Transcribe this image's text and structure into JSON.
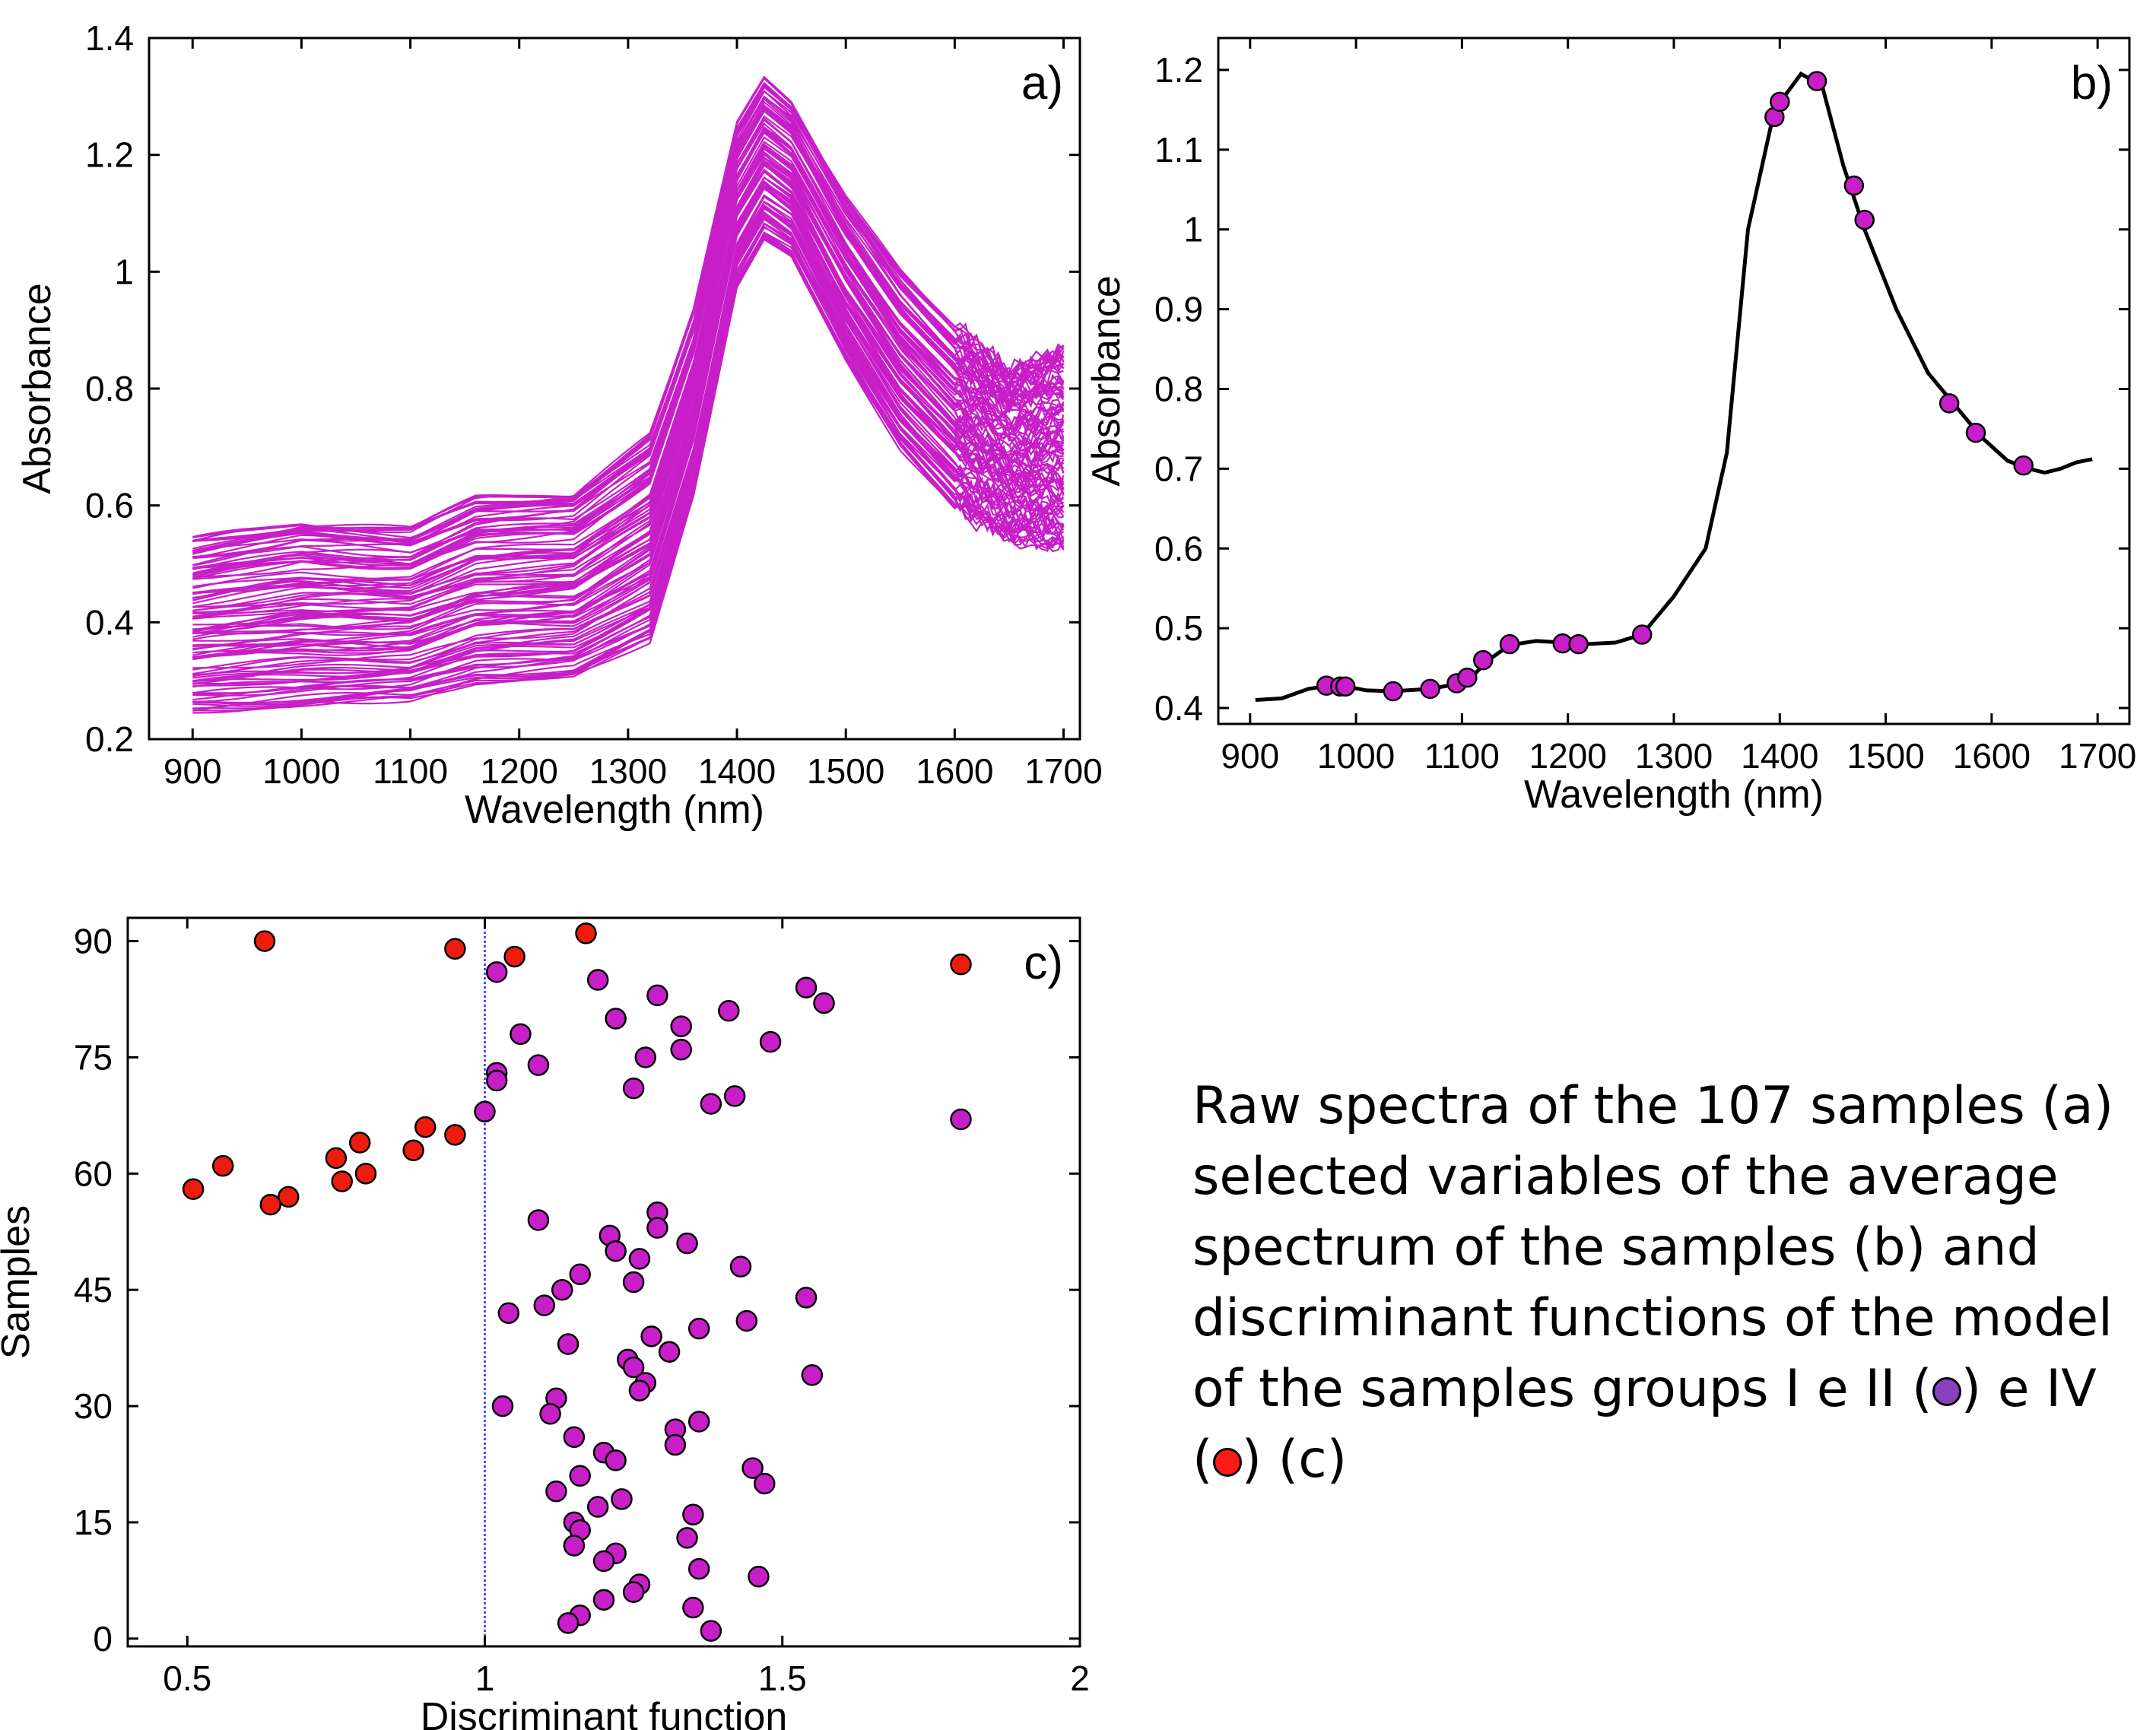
{
  "chart_data": [
    {
      "id": "a",
      "type": "line",
      "panel_label": "a)",
      "xlabel": "Wavelength (nm)",
      "ylabel": "Absorbance",
      "xlim": [
        860,
        1715
      ],
      "ylim": [
        0.2,
        1.4
      ],
      "xticks": [
        900,
        1000,
        1100,
        1200,
        1300,
        1400,
        1500,
        1600,
        1700
      ],
      "yticks": [
        0.2,
        0.4,
        0.6,
        0.8,
        1,
        1.2,
        1.4
      ],
      "ytick_labels": [
        "0.2",
        "0.4",
        "0.6",
        "0.8",
        "1",
        "1.2",
        "1.4"
      ],
      "series_color": "#c81ec8",
      "series_count": 107,
      "grid": false,
      "envelope": {
        "x": [
          900,
          1000,
          1100,
          1160,
          1250,
          1320,
          1360,
          1400,
          1425,
          1450,
          1500,
          1550,
          1600,
          1650,
          1700
        ],
        "lower": [
          0.25,
          0.26,
          0.27,
          0.3,
          0.31,
          0.37,
          0.62,
          0.98,
          1.06,
          1.03,
          0.85,
          0.7,
          0.6,
          0.55,
          0.53
        ],
        "upper": [
          0.54,
          0.57,
          0.56,
          0.61,
          0.62,
          0.72,
          0.93,
          1.25,
          1.33,
          1.29,
          1.13,
          1.0,
          0.9,
          0.83,
          0.87
        ],
        "mean": [
          0.4,
          0.41,
          0.42,
          0.46,
          0.47,
          0.55,
          0.8,
          1.13,
          1.19,
          1.15,
          0.99,
          0.84,
          0.74,
          0.69,
          0.7
        ]
      }
    },
    {
      "id": "b",
      "type": "line",
      "panel_label": "b)",
      "xlabel": "Wavelength (nm)",
      "ylabel": "Absorbance",
      "xlim": [
        870,
        1730
      ],
      "ylim": [
        0.38,
        1.24
      ],
      "xticks": [
        900,
        1000,
        1100,
        1200,
        1300,
        1400,
        1500,
        1600,
        1700
      ],
      "yticks": [
        0.4,
        0.5,
        0.6,
        0.7,
        0.8,
        0.9,
        1,
        1.1,
        1.2
      ],
      "ytick_labels": [
        "0.4",
        "0.5",
        "0.6",
        "0.7",
        "0.8",
        "0.9",
        "1",
        "1.1",
        "1.2"
      ],
      "grid": false,
      "line_color": "#000000",
      "marker_color": "#c81ec8",
      "x": [
        905,
        930,
        955,
        975,
        990,
        1010,
        1035,
        1070,
        1095,
        1110,
        1125,
        1145,
        1170,
        1195,
        1215,
        1245,
        1270,
        1300,
        1330,
        1350,
        1370,
        1395,
        1420,
        1440,
        1460,
        1480,
        1510,
        1540,
        1565,
        1590,
        1615,
        1635,
        1650,
        1665,
        1680,
        1695
      ],
      "y": [
        0.41,
        0.412,
        0.424,
        0.428,
        0.427,
        0.422,
        0.421,
        0.424,
        0.43,
        0.44,
        0.46,
        0.479,
        0.484,
        0.482,
        0.48,
        0.482,
        0.492,
        0.54,
        0.6,
        0.72,
        1.0,
        1.15,
        1.195,
        1.18,
        1.08,
        1.0,
        0.9,
        0.82,
        0.78,
        0.74,
        0.71,
        0.7,
        0.695,
        0.7,
        0.708,
        0.712
      ],
      "selected_variables": {
        "x": [
          972,
          985,
          990,
          1035,
          1070,
          1095,
          1105,
          1120,
          1145,
          1195,
          1210,
          1270,
          1395,
          1400,
          1435,
          1470,
          1480,
          1560,
          1585,
          1630
        ],
        "y": [
          0.428,
          0.427,
          0.427,
          0.421,
          0.424,
          0.431,
          0.438,
          0.46,
          0.48,
          0.481,
          0.48,
          0.492,
          1.141,
          1.16,
          1.186,
          1.055,
          1.012,
          0.782,
          0.745,
          0.704
        ]
      }
    },
    {
      "id": "c",
      "type": "scatter",
      "panel_label": "c)",
      "xlabel": "Discriminant function",
      "ylabel": "Samples",
      "xlim": [
        0.4,
        2.0
      ],
      "ylim": [
        -1,
        93
      ],
      "xticks": [
        0.5,
        1,
        1.5,
        2
      ],
      "xtick_labels": [
        "0.5",
        "1",
        "1.5",
        "2"
      ],
      "yticks": [
        0,
        15,
        30,
        45,
        60,
        75,
        90
      ],
      "grid": false,
      "threshold_x": 1.0,
      "threshold_color": "#2b2bff",
      "series": [
        {
          "name": "I e II",
          "color": "#c81ec8",
          "points": [
            [
              1.02,
              86
            ],
            [
              1.19,
              85
            ],
            [
              1.29,
              83
            ],
            [
              1.54,
              84
            ],
            [
              1.57,
              82
            ],
            [
              1.22,
              80
            ],
            [
              1.33,
              79
            ],
            [
              1.41,
              81
            ],
            [
              1.06,
              78
            ],
            [
              1.48,
              77
            ],
            [
              1.33,
              76
            ],
            [
              1.27,
              75
            ],
            [
              1.09,
              74
            ],
            [
              1.02,
              73
            ],
            [
              1.02,
              72
            ],
            [
              1.25,
              71
            ],
            [
              1.42,
              70
            ],
            [
              1.38,
              69
            ],
            [
              1.0,
              68
            ],
            [
              1.8,
              67
            ],
            [
              1.09,
              54
            ],
            [
              1.29,
              55
            ],
            [
              1.29,
              53
            ],
            [
              1.21,
              52
            ],
            [
              1.34,
              51
            ],
            [
              1.22,
              50
            ],
            [
              1.26,
              49
            ],
            [
              1.43,
              48
            ],
            [
              1.16,
              47
            ],
            [
              1.25,
              46
            ],
            [
              1.13,
              45
            ],
            [
              1.54,
              44
            ],
            [
              1.1,
              43
            ],
            [
              1.04,
              42
            ],
            [
              1.44,
              41
            ],
            [
              1.36,
              40
            ],
            [
              1.28,
              39
            ],
            [
              1.14,
              38
            ],
            [
              1.31,
              37
            ],
            [
              1.24,
              36
            ],
            [
              1.25,
              35
            ],
            [
              1.55,
              34
            ],
            [
              1.27,
              33
            ],
            [
              1.26,
              32
            ],
            [
              1.12,
              31
            ],
            [
              1.03,
              30
            ],
            [
              1.11,
              29
            ],
            [
              1.36,
              28
            ],
            [
              1.32,
              27
            ],
            [
              1.15,
              26
            ],
            [
              1.32,
              25
            ],
            [
              1.2,
              24
            ],
            [
              1.22,
              23
            ],
            [
              1.45,
              22
            ],
            [
              1.16,
              21
            ],
            [
              1.47,
              20
            ],
            [
              1.12,
              19
            ],
            [
              1.23,
              18
            ],
            [
              1.19,
              17
            ],
            [
              1.35,
              16
            ],
            [
              1.15,
              15
            ],
            [
              1.16,
              14
            ],
            [
              1.34,
              13
            ],
            [
              1.15,
              12
            ],
            [
              1.22,
              11
            ],
            [
              1.2,
              10
            ],
            [
              1.36,
              9
            ],
            [
              1.46,
              8
            ],
            [
              1.26,
              7
            ],
            [
              1.25,
              6
            ],
            [
              1.2,
              5
            ],
            [
              1.35,
              4
            ],
            [
              1.16,
              3
            ],
            [
              1.14,
              2
            ],
            [
              1.38,
              1
            ]
          ]
        },
        {
          "name": "IV",
          "color": "#ee1c0e",
          "points": [
            [
              0.63,
              90
            ],
            [
              0.95,
              89
            ],
            [
              1.17,
              91
            ],
            [
              1.05,
              88
            ],
            [
              1.8,
              87
            ],
            [
              0.9,
              66
            ],
            [
              0.95,
              65
            ],
            [
              0.79,
              64
            ],
            [
              0.88,
              63
            ],
            [
              0.75,
              62
            ],
            [
              0.56,
              61
            ],
            [
              0.8,
              60
            ],
            [
              0.76,
              59
            ],
            [
              0.51,
              58
            ],
            [
              0.67,
              57
            ],
            [
              0.64,
              56
            ]
          ]
        }
      ]
    }
  ],
  "caption": {
    "text_before_purple": "Raw spectra of the 107 samples (a) selected variables of the average spectrum of the samples (b) and discriminant functions of the model of the samples groups I e II (",
    "text_between": ") e IV (",
    "text_after_red": ") (c)",
    "purple_color": "#8a3fbf",
    "red_color": "#ff1a1a"
  }
}
